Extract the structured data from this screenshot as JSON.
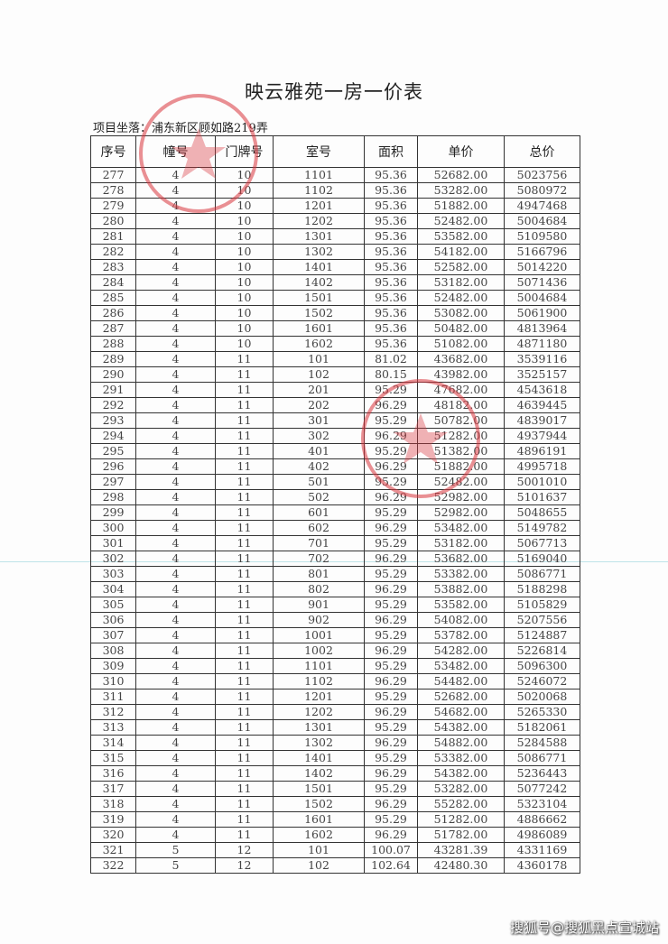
{
  "document": {
    "title": "映云雅苑一房一价表",
    "location": "项目坐落：浦东新区顾如路219弄",
    "columns": [
      "序号",
      "幢号",
      "门牌号",
      "室号",
      "面积",
      "单价",
      "总价"
    ],
    "rows": [
      [
        "277",
        "4",
        "10",
        "1101",
        "95.36",
        "52682.00",
        "5023756"
      ],
      [
        "278",
        "4",
        "10",
        "1102",
        "95.36",
        "53282.00",
        "5080972"
      ],
      [
        "279",
        "4",
        "10",
        "1201",
        "95.36",
        "51882.00",
        "4947468"
      ],
      [
        "280",
        "4",
        "10",
        "1202",
        "95.36",
        "52482.00",
        "5004684"
      ],
      [
        "281",
        "4",
        "10",
        "1301",
        "95.36",
        "53582.00",
        "5109580"
      ],
      [
        "282",
        "4",
        "10",
        "1302",
        "95.36",
        "54182.00",
        "5166796"
      ],
      [
        "283",
        "4",
        "10",
        "1401",
        "95.36",
        "52582.00",
        "5014220"
      ],
      [
        "284",
        "4",
        "10",
        "1402",
        "95.36",
        "53182.00",
        "5071436"
      ],
      [
        "285",
        "4",
        "10",
        "1501",
        "95.36",
        "52482.00",
        "5004684"
      ],
      [
        "286",
        "4",
        "10",
        "1502",
        "95.36",
        "53082.00",
        "5061900"
      ],
      [
        "287",
        "4",
        "10",
        "1601",
        "95.36",
        "50482.00",
        "4813964"
      ],
      [
        "288",
        "4",
        "10",
        "1602",
        "95.36",
        "51082.00",
        "4871180"
      ],
      [
        "289",
        "4",
        "11",
        "101",
        "81.02",
        "43682.00",
        "3539116"
      ],
      [
        "290",
        "4",
        "11",
        "102",
        "80.15",
        "43982.00",
        "3525157"
      ],
      [
        "291",
        "4",
        "11",
        "201",
        "95.29",
        "47682.00",
        "4543618"
      ],
      [
        "292",
        "4",
        "11",
        "202",
        "96.29",
        "48182.00",
        "4639445"
      ],
      [
        "293",
        "4",
        "11",
        "301",
        "95.29",
        "50782.00",
        "4839017"
      ],
      [
        "294",
        "4",
        "11",
        "302",
        "96.29",
        "51282.00",
        "4937944"
      ],
      [
        "295",
        "4",
        "11",
        "401",
        "95.29",
        "51382.00",
        "4896191"
      ],
      [
        "296",
        "4",
        "11",
        "402",
        "96.29",
        "51882.00",
        "4995718"
      ],
      [
        "297",
        "4",
        "11",
        "501",
        "95.29",
        "52482.00",
        "5001010"
      ],
      [
        "298",
        "4",
        "11",
        "502",
        "96.29",
        "52982.00",
        "5101637"
      ],
      [
        "299",
        "4",
        "11",
        "601",
        "95.29",
        "52982.00",
        "5048655"
      ],
      [
        "300",
        "4",
        "11",
        "602",
        "96.29",
        "53482.00",
        "5149782"
      ],
      [
        "301",
        "4",
        "11",
        "701",
        "95.29",
        "53182.00",
        "5067713"
      ],
      [
        "302",
        "4",
        "11",
        "702",
        "96.29",
        "53682.00",
        "5169040"
      ],
      [
        "303",
        "4",
        "11",
        "801",
        "95.29",
        "53382.00",
        "5086771"
      ],
      [
        "304",
        "4",
        "11",
        "802",
        "96.29",
        "53882.00",
        "5188298"
      ],
      [
        "305",
        "4",
        "11",
        "901",
        "95.29",
        "53582.00",
        "5105829"
      ],
      [
        "306",
        "4",
        "11",
        "902",
        "96.29",
        "54082.00",
        "5207556"
      ],
      [
        "307",
        "4",
        "11",
        "1001",
        "95.29",
        "53782.00",
        "5124887"
      ],
      [
        "308",
        "4",
        "11",
        "1002",
        "96.29",
        "54282.00",
        "5226814"
      ],
      [
        "309",
        "4",
        "11",
        "1101",
        "95.29",
        "53482.00",
        "5096300"
      ],
      [
        "310",
        "4",
        "11",
        "1102",
        "96.29",
        "54482.00",
        "5246072"
      ],
      [
        "311",
        "4",
        "11",
        "1201",
        "95.29",
        "52682.00",
        "5020068"
      ],
      [
        "312",
        "4",
        "11",
        "1202",
        "96.29",
        "54682.00",
        "5265330"
      ],
      [
        "313",
        "4",
        "11",
        "1301",
        "95.29",
        "54382.00",
        "5182061"
      ],
      [
        "314",
        "4",
        "11",
        "1302",
        "96.29",
        "54882.00",
        "5284588"
      ],
      [
        "315",
        "4",
        "11",
        "1401",
        "95.29",
        "53382.00",
        "5086771"
      ],
      [
        "316",
        "4",
        "11",
        "1402",
        "96.29",
        "54382.00",
        "5236443"
      ],
      [
        "317",
        "4",
        "11",
        "1501",
        "95.29",
        "53282.00",
        "5077242"
      ],
      [
        "318",
        "4",
        "11",
        "1502",
        "96.29",
        "55282.00",
        "5323104"
      ],
      [
        "319",
        "4",
        "11",
        "1601",
        "95.29",
        "51282.00",
        "4886662"
      ],
      [
        "320",
        "4",
        "11",
        "1602",
        "96.29",
        "51782.00",
        "4986089"
      ],
      [
        "321",
        "5",
        "12",
        "101",
        "100.07",
        "43281.39",
        "4331169"
      ],
      [
        "322",
        "5",
        "12",
        "102",
        "102.64",
        "42480.30",
        "4360178"
      ]
    ]
  },
  "watermark": "搜狐号@搜狐黑点宣城站",
  "colors": {
    "stamp": "#d9363e",
    "text": "#2a2a2a"
  }
}
